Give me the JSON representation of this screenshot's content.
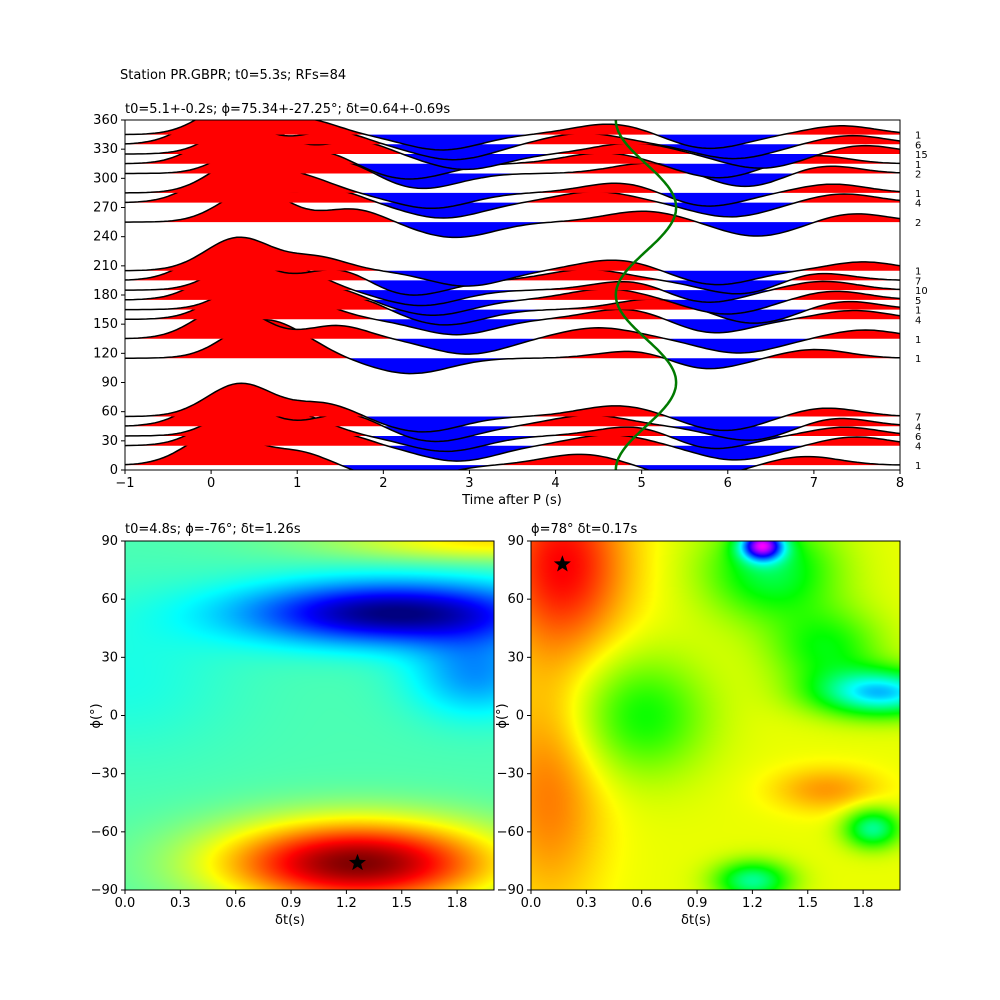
{
  "figure_title": "Station PR.GBPR; t0=5.3s; RFs=84",
  "chart_data": [
    {
      "type": "line",
      "subtitle": "t0=5.1+-0.2s; ϕ=75.34+-27.25°; δt=0.64+-0.69s",
      "xlabel": "Time after P (s)",
      "ylabel": "",
      "xlim": [
        -1,
        8
      ],
      "ylim": [
        0,
        360
      ],
      "x_ticks": [
        "−1",
        "0",
        "1",
        "2",
        "3",
        "4",
        "5",
        "6",
        "7",
        "8"
      ],
      "y_ticks": [
        "0",
        "30",
        "60",
        "90",
        "120",
        "150",
        "180",
        "210",
        "240",
        "270",
        "300",
        "330",
        "360"
      ],
      "backazimuth_bins": [
        {
          "baz": 5,
          "count": "1"
        },
        {
          "baz": 25,
          "count": "4"
        },
        {
          "baz": 35,
          "count": "6"
        },
        {
          "baz": 45,
          "count": "4"
        },
        {
          "baz": 55,
          "count": "7"
        },
        {
          "baz": 115,
          "count": "1"
        },
        {
          "baz": 135,
          "count": "1"
        },
        {
          "baz": 155,
          "count": "4"
        },
        {
          "baz": 165,
          "count": "1"
        },
        {
          "baz": 175,
          "count": "5"
        },
        {
          "baz": 185,
          "count": "10"
        },
        {
          "baz": 195,
          "count": "7"
        },
        {
          "baz": 205,
          "count": "1"
        },
        {
          "baz": 255,
          "count": "2"
        },
        {
          "baz": 275,
          "count": "4"
        },
        {
          "baz": 285,
          "count": "1"
        },
        {
          "baz": 305,
          "count": "2"
        },
        {
          "baz": 315,
          "count": "1"
        },
        {
          "baz": 325,
          "count": "15"
        },
        {
          "baz": 335,
          "count": "6"
        },
        {
          "baz": 345,
          "count": "1"
        }
      ],
      "predicted_arrival_curve": {
        "color": "#007a00",
        "mean_t": 5.05,
        "amplitude_s": 0.35,
        "period_deg": 180
      }
    },
    {
      "type": "heatmap",
      "subtitle": "t0=4.8s; ϕ=-76°; δt=1.26s",
      "xlabel": "δt(s)",
      "ylabel": "ϕ(°)",
      "xlim": [
        0,
        2
      ],
      "ylim": [
        -90,
        90
      ],
      "x_ticks": [
        "0.0",
        "0.3",
        "0.6",
        "0.9",
        "1.2",
        "1.5",
        "1.8"
      ],
      "y_ticks": [
        "−90",
        "−60",
        "−30",
        "0",
        "30",
        "60",
        "90"
      ],
      "colormap": "jet",
      "best_fit": {
        "dt": 1.26,
        "phi": -76
      },
      "marker": "star"
    },
    {
      "type": "heatmap",
      "subtitle": "ϕ=78° δt=0.17s",
      "xlabel": "δt(s)",
      "ylabel": "ϕ(°)",
      "xlim": [
        0,
        2
      ],
      "ylim": [
        -90,
        90
      ],
      "x_ticks": [
        "0.0",
        "0.3",
        "0.6",
        "0.9",
        "1.2",
        "1.5",
        "1.8"
      ],
      "y_ticks": [
        "−90",
        "−60",
        "−30",
        "0",
        "30",
        "60",
        "90"
      ],
      "colormap": "hsv",
      "best_fit": {
        "dt": 0.17,
        "phi": 78
      },
      "marker": "star"
    }
  ]
}
